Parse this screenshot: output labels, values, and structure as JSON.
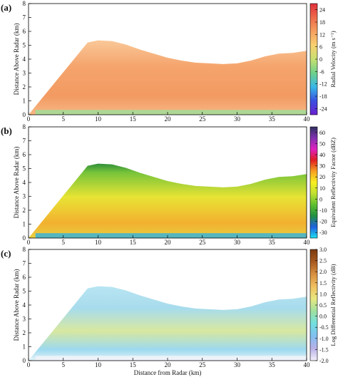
{
  "chart_data": [
    {
      "type": "heatmap",
      "panel_label": "(a)",
      "ylabel": "Distance Above Radar (km)",
      "xlim": [
        0,
        40
      ],
      "xticks": [
        0,
        5,
        10,
        15,
        20,
        25,
        30,
        35,
        40
      ],
      "ylim": [
        0,
        8
      ],
      "yticks": [
        0,
        1,
        2,
        3,
        4,
        5,
        6,
        7,
        8
      ],
      "colorbar_label": "Radial Velocity (m s⁻¹)",
      "clim": [
        -27,
        27
      ],
      "cticks": [
        -24,
        -18,
        -12,
        -6,
        0,
        6,
        12,
        18,
        24
      ],
      "colormap": [
        "#6a1fd0",
        "#3a4fe0",
        "#38b8e8",
        "#6fd08a",
        "#c8e070",
        "#f8d070",
        "#f5a060",
        "#ee6a4a",
        "#e0303a"
      ]
    },
    {
      "type": "heatmap",
      "panel_label": "(b)",
      "ylabel": "Distance Above Radar (km)",
      "xlim": [
        0,
        40
      ],
      "xticks": [
        0,
        5,
        10,
        15,
        20,
        25,
        30,
        35,
        40
      ],
      "ylim": [
        0,
        8
      ],
      "yticks": [
        0,
        1,
        2,
        3,
        4,
        5,
        6,
        7,
        8
      ],
      "colorbar_label": "Equivalent Reflectivity Factor (dBZ)",
      "clim": [
        -35,
        65
      ],
      "cticks": [
        -30,
        -20,
        -10,
        0,
        10,
        20,
        30,
        40,
        50,
        60
      ],
      "colormap": [
        "#20e0f0",
        "#2060e0",
        "#209040",
        "#60c030",
        "#c0e030",
        "#f8f020",
        "#f8a020",
        "#e02020",
        "#e020c0",
        "#8030b0",
        "#303060"
      ]
    },
    {
      "type": "heatmap",
      "panel_label": "(c)",
      "ylabel": "Distance Above Radar (km)",
      "xlabel": "Distance from Radar (km)",
      "xlim": [
        0,
        40
      ],
      "xticks": [
        0,
        5,
        10,
        15,
        20,
        25,
        30,
        35,
        40
      ],
      "ylim": [
        0,
        8
      ],
      "yticks": [
        0,
        1,
        2,
        3,
        4,
        5,
        6,
        7,
        8
      ],
      "colorbar_label": "Log Differential Reflectivity (dB)",
      "clim": [
        -2,
        3
      ],
      "cticks": [
        {
          "value": -2,
          "label": "-2.0"
        },
        -1.5,
        {
          "value": -1,
          "label": "-1.0"
        },
        -0.5,
        {
          "value": 0,
          "label": "0.0"
        },
        0.5,
        {
          "value": 1,
          "label": "1.0"
        },
        1.5,
        {
          "value": 2,
          "label": "2.0"
        },
        2.5,
        {
          "value": 3,
          "label": "3.0"
        }
      ],
      "colormap": [
        "#f4f0fa",
        "#b8b0e8",
        "#80c0f0",
        "#70e0e0",
        "#a0e0a0",
        "#e8e880",
        "#f0c060",
        "#d89040",
        "#a85a20",
        "#7a3a10"
      ]
    }
  ]
}
